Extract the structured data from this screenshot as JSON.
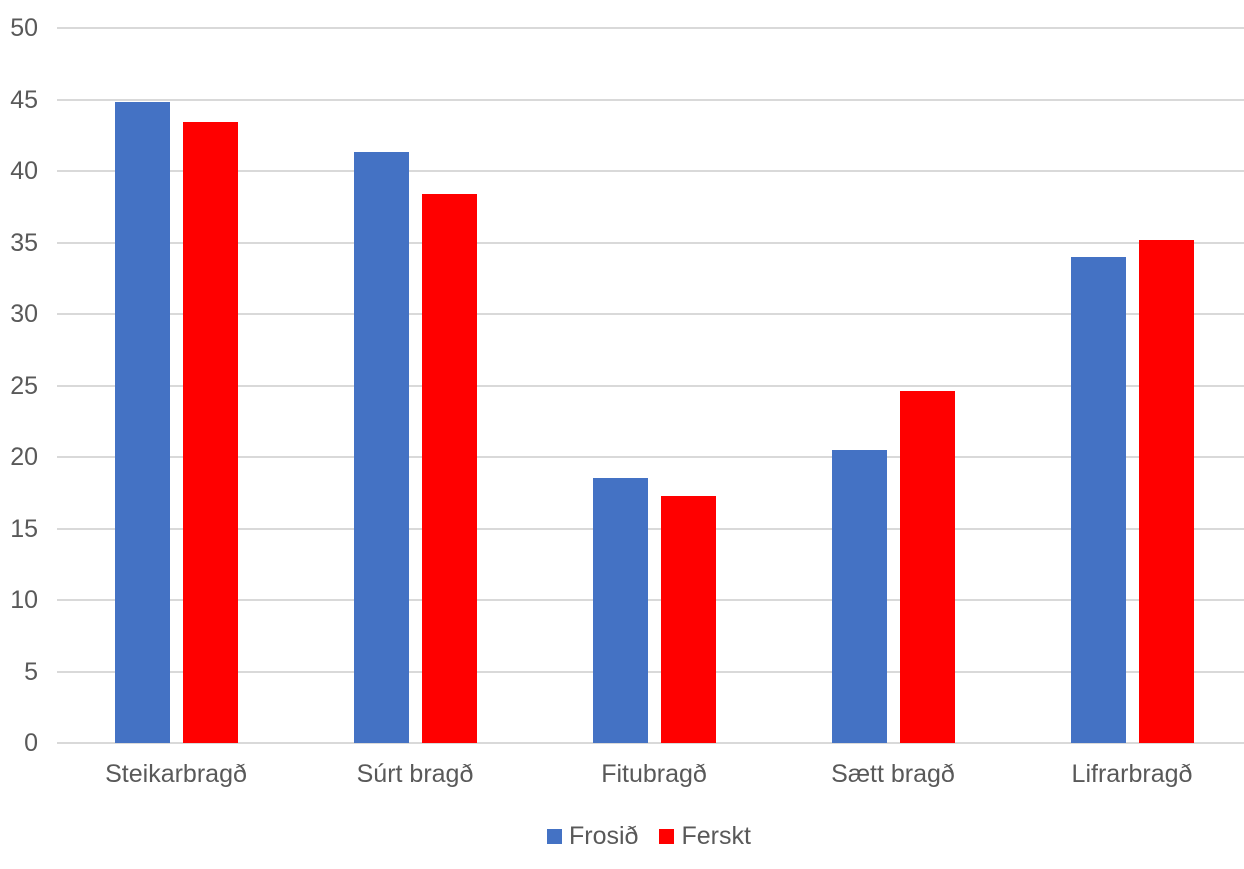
{
  "chart_data": {
    "type": "bar",
    "title": "",
    "xlabel": "",
    "ylabel": "",
    "categories": [
      "Steikarbragð",
      "Súrt bragð",
      "Fitubragð",
      "Sætt bragð",
      "Lifrarbragð"
    ],
    "series": [
      {
        "name": "Frosið",
        "color": "#4472C4",
        "values": [
          44.8,
          41.3,
          18.5,
          20.5,
          34.0
        ]
      },
      {
        "name": "Ferskt",
        "color": "#FF0000",
        "values": [
          43.4,
          38.4,
          17.3,
          24.6,
          35.2
        ]
      }
    ],
    "ylim": [
      0,
      50
    ],
    "ytick_step": 5,
    "ytick_labels": [
      "0",
      "5",
      "10",
      "15",
      "20",
      "25",
      "30",
      "35",
      "40",
      "45",
      "50"
    ],
    "grid": true,
    "legend_position": "bottom",
    "colors": {
      "gridline": "#D9D9D9",
      "axis_label": "#595959",
      "background": "#FFFFFF"
    }
  }
}
